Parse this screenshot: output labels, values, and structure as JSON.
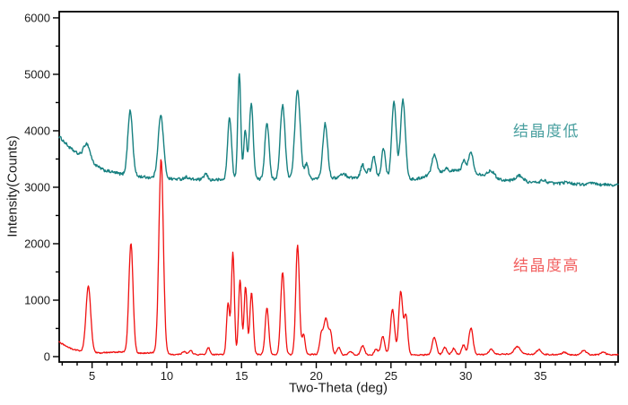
{
  "figure": {
    "background": "#ffffff",
    "axis_color": "#000000",
    "tick_label_color": "#1a1a1a"
  },
  "chart_data": {
    "type": "line",
    "subtype": "xrd-powder-diffraction-pattern",
    "title": "",
    "xlabel": "Two-Theta (deg)",
    "ylabel": "Intensity(Counts)",
    "xlim": [
      2.8,
      40.2
    ],
    "ylim": [
      -95,
      6110
    ],
    "x_major_ticks": [
      5,
      10,
      15,
      20,
      25,
      30,
      35
    ],
    "x_minor_step": 1,
    "y_major_ticks": [
      0,
      1000,
      2000,
      3000,
      4000,
      5000,
      6000
    ],
    "y_minor_step": 500,
    "grid": false,
    "legend_position": "inside-right",
    "series": [
      {
        "name": "结晶度低",
        "color": "#178080",
        "label_color": "#4aa0a0",
        "line_width": 1.4,
        "noise_counts": 26,
        "baseline_points_2theta_counts": [
          [
            2.8,
            3900
          ],
          [
            3.5,
            3700
          ],
          [
            4.2,
            3560
          ],
          [
            5.0,
            3420
          ],
          [
            5.8,
            3300
          ],
          [
            7.0,
            3230
          ],
          [
            8.5,
            3180
          ],
          [
            10,
            3150
          ],
          [
            13,
            3130
          ],
          [
            16,
            3140
          ],
          [
            20,
            3150
          ],
          [
            22.2,
            3170
          ],
          [
            24.2,
            3175
          ],
          [
            26.7,
            3140
          ],
          [
            27.3,
            3200
          ],
          [
            28.5,
            3280
          ],
          [
            29.6,
            3300
          ],
          [
            31.2,
            3220
          ],
          [
            32.5,
            3130
          ],
          [
            34,
            3090
          ],
          [
            36,
            3070
          ],
          [
            38,
            3050
          ],
          [
            40.2,
            3040
          ]
        ],
        "peaks_2theta_amp_sigma": [
          [
            4.65,
            290,
            0.22
          ],
          [
            7.55,
            1140,
            0.16
          ],
          [
            9.6,
            1110,
            0.18
          ],
          [
            11.3,
            40,
            0.15
          ],
          [
            12.6,
            105,
            0.12
          ],
          [
            14.2,
            1110,
            0.13
          ],
          [
            14.85,
            1900,
            0.1
          ],
          [
            15.25,
            880,
            0.1
          ],
          [
            15.65,
            1340,
            0.13
          ],
          [
            16.7,
            1010,
            0.14
          ],
          [
            17.75,
            1300,
            0.16
          ],
          [
            18.75,
            1560,
            0.18
          ],
          [
            19.35,
            260,
            0.12
          ],
          [
            20.6,
            970,
            0.16
          ],
          [
            21.8,
            70,
            0.2
          ],
          [
            23.1,
            230,
            0.13
          ],
          [
            23.5,
            140,
            0.1
          ],
          [
            23.85,
            370,
            0.12
          ],
          [
            24.5,
            520,
            0.13
          ],
          [
            25.2,
            1370,
            0.15
          ],
          [
            25.8,
            1400,
            0.16
          ],
          [
            27.9,
            350,
            0.16
          ],
          [
            28.7,
            55,
            0.12
          ],
          [
            29.9,
            185,
            0.13
          ],
          [
            30.35,
            355,
            0.15
          ],
          [
            31.7,
            110,
            0.2
          ],
          [
            33.6,
            105,
            0.25
          ],
          [
            35.2,
            45,
            0.2
          ],
          [
            36.8,
            30,
            0.2
          ],
          [
            38.5,
            25,
            0.2
          ]
        ]
      },
      {
        "name": "结晶度高",
        "color": "#f01010",
        "label_color": "#f26060",
        "line_width": 1.3,
        "noise_counts": 11,
        "baseline_points_2theta_counts": [
          [
            2.8,
            255
          ],
          [
            3.6,
            140
          ],
          [
            4.3,
            95
          ],
          [
            5.5,
            65
          ],
          [
            7.0,
            85
          ],
          [
            8.3,
            60
          ],
          [
            9.1,
            70
          ],
          [
            10.3,
            40
          ],
          [
            13.6,
            35
          ],
          [
            19.6,
            40
          ],
          [
            22.6,
            25
          ],
          [
            26.6,
            30
          ],
          [
            29.5,
            35
          ],
          [
            31,
            35
          ],
          [
            33,
            45
          ],
          [
            35.2,
            40
          ],
          [
            37,
            30
          ],
          [
            40.2,
            35
          ]
        ],
        "peaks_2theta_amp_sigma": [
          [
            4.75,
            1160,
            0.16
          ],
          [
            7.6,
            1930,
            0.14
          ],
          [
            9.62,
            3440,
            0.15
          ],
          [
            11.15,
            55,
            0.12
          ],
          [
            11.6,
            65,
            0.12
          ],
          [
            12.78,
            125,
            0.1
          ],
          [
            14.1,
            910,
            0.1
          ],
          [
            14.42,
            1800,
            0.1
          ],
          [
            14.9,
            1330,
            0.1
          ],
          [
            15.27,
            1210,
            0.1
          ],
          [
            15.67,
            1100,
            0.11
          ],
          [
            16.7,
            820,
            0.12
          ],
          [
            17.75,
            1450,
            0.13
          ],
          [
            18.75,
            1940,
            0.12
          ],
          [
            19.15,
            360,
            0.1
          ],
          [
            20.35,
            370,
            0.12
          ],
          [
            20.65,
            630,
            0.13
          ],
          [
            20.95,
            400,
            0.11
          ],
          [
            21.5,
            130,
            0.12
          ],
          [
            22.3,
            60,
            0.15
          ],
          [
            23.1,
            170,
            0.13
          ],
          [
            24.0,
            100,
            0.12
          ],
          [
            24.45,
            330,
            0.13
          ],
          [
            25.1,
            810,
            0.14
          ],
          [
            25.65,
            1120,
            0.13
          ],
          [
            26.0,
            700,
            0.12
          ],
          [
            27.9,
            310,
            0.14
          ],
          [
            28.6,
            130,
            0.12
          ],
          [
            29.2,
            110,
            0.12
          ],
          [
            29.85,
            170,
            0.12
          ],
          [
            30.35,
            470,
            0.14
          ],
          [
            31.7,
            90,
            0.15
          ],
          [
            33.45,
            130,
            0.2
          ],
          [
            34.9,
            85,
            0.15
          ],
          [
            36.6,
            45,
            0.15
          ],
          [
            37.9,
            75,
            0.18
          ],
          [
            39.2,
            45,
            0.15
          ]
        ]
      }
    ]
  }
}
